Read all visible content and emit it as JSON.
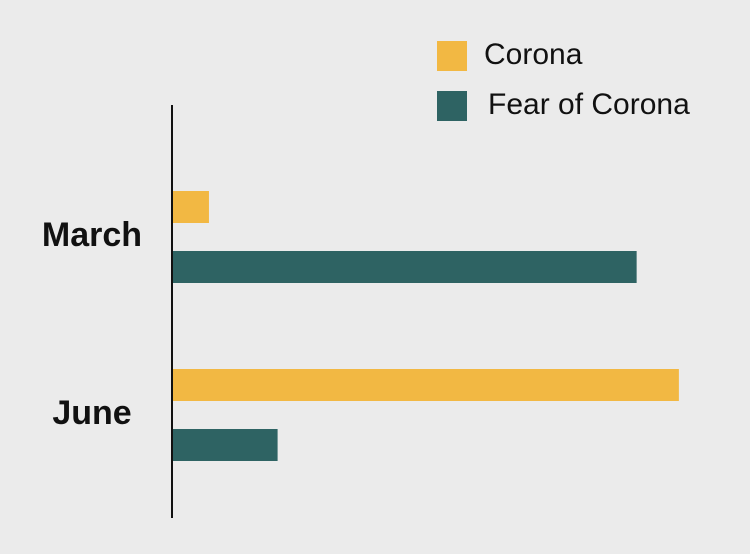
{
  "chart_data": {
    "type": "barh",
    "categories": [
      "March",
      "June"
    ],
    "series": [
      {
        "name": "Corona",
        "color": "#f2b843",
        "values": [
          7,
          96
        ]
      },
      {
        "name": "Fear of Corona",
        "color": "#2e6363",
        "values": [
          88,
          20
        ]
      }
    ],
    "xlim": [
      0,
      100
    ]
  }
}
